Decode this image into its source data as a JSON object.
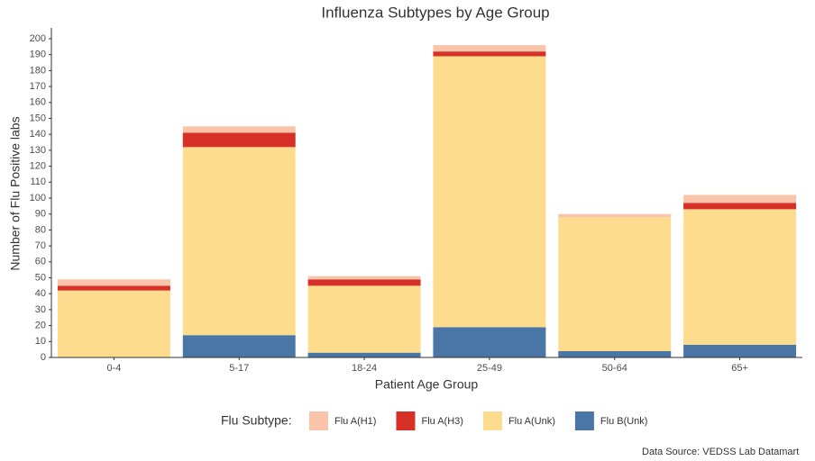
{
  "chart_data": {
    "type": "stacked-bar",
    "title": "Influenza Subtypes by Age Group",
    "x_label": "Patient Age Group",
    "y_label": "Number of Flu Positive labs",
    "legend_title": "Flu Subtype:",
    "source": "Data Source: VEDSS Lab Datamart",
    "categories": [
      "0-4",
      "5-17",
      "18-24",
      "25-49",
      "50-64",
      "65+"
    ],
    "series": [
      {
        "name": "Flu B(Unk)",
        "color": "#4a76a6",
        "values": [
          0,
          14,
          3,
          19,
          4,
          8
        ]
      },
      {
        "name": "Flu A(Unk)",
        "color": "#fddc8e",
        "values": [
          42,
          118,
          42,
          170,
          84,
          85
        ]
      },
      {
        "name": "Flu A(H3)",
        "color": "#d73027",
        "values": [
          3,
          9,
          4,
          3,
          0,
          4
        ]
      },
      {
        "name": "Flu A(H1)",
        "color": "#f9c4a9",
        "values": [
          4,
          4,
          2,
          4,
          2,
          5
        ]
      }
    ],
    "legend_order": [
      3,
      2,
      1,
      0
    ],
    "ylim": [
      0,
      200
    ],
    "yticks": [
      0,
      10,
      20,
      30,
      40,
      50,
      60,
      70,
      80,
      90,
      100,
      110,
      120,
      130,
      140,
      150,
      160,
      170,
      180,
      190,
      200
    ],
    "grid": false
  }
}
